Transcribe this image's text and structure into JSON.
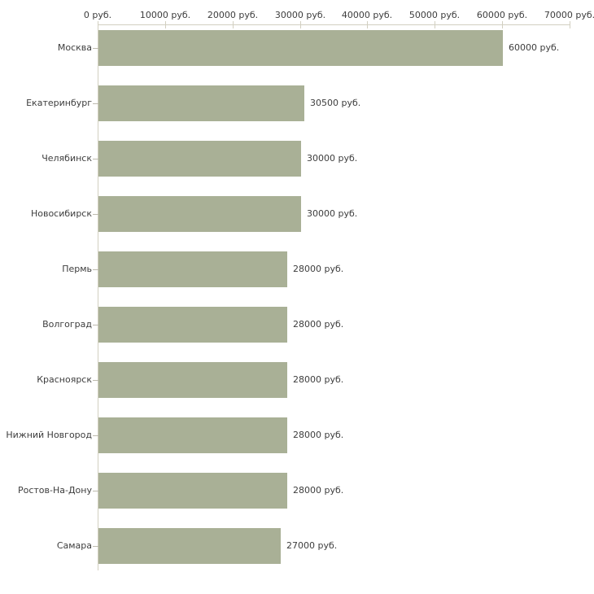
{
  "chart_data": {
    "type": "bar",
    "orientation": "horizontal",
    "title": "",
    "unit": "руб.",
    "categories": [
      "Москва",
      "Екатеринбург",
      "Челябинск",
      "Новосибирск",
      "Пермь",
      "Волгоград",
      "Красноярск",
      "Нижний Новгород",
      "Ростов-На-Дону",
      "Самара"
    ],
    "values": [
      60000,
      30500,
      30000,
      30000,
      28000,
      28000,
      28000,
      28000,
      28000,
      27000
    ],
    "bar_labels": [
      "60000 руб.",
      "30500 руб.",
      "30000 руб.",
      "30000 руб.",
      "28000 руб.",
      "28000 руб.",
      "28000 руб.",
      "28000 руб.",
      "28000 руб.",
      "27000 руб."
    ],
    "x_axis": {
      "position": "top",
      "min": 0,
      "max": 70000,
      "tick_values": [
        0,
        10000,
        20000,
        30000,
        40000,
        50000,
        60000,
        70000
      ],
      "tick_labels": [
        "0 руб.",
        "10000 руб.",
        "20000 руб.",
        "30000 руб.",
        "40000 руб.",
        "50000 руб.",
        "60000 руб.",
        "70000 руб."
      ]
    },
    "grid": false,
    "legend": null,
    "colors": {
      "bar": "#a9b096",
      "axis_line": "#d2cfc0",
      "category_tick": "#bdbaae",
      "text": "#3d3d3d",
      "background": "#ffffff"
    }
  }
}
